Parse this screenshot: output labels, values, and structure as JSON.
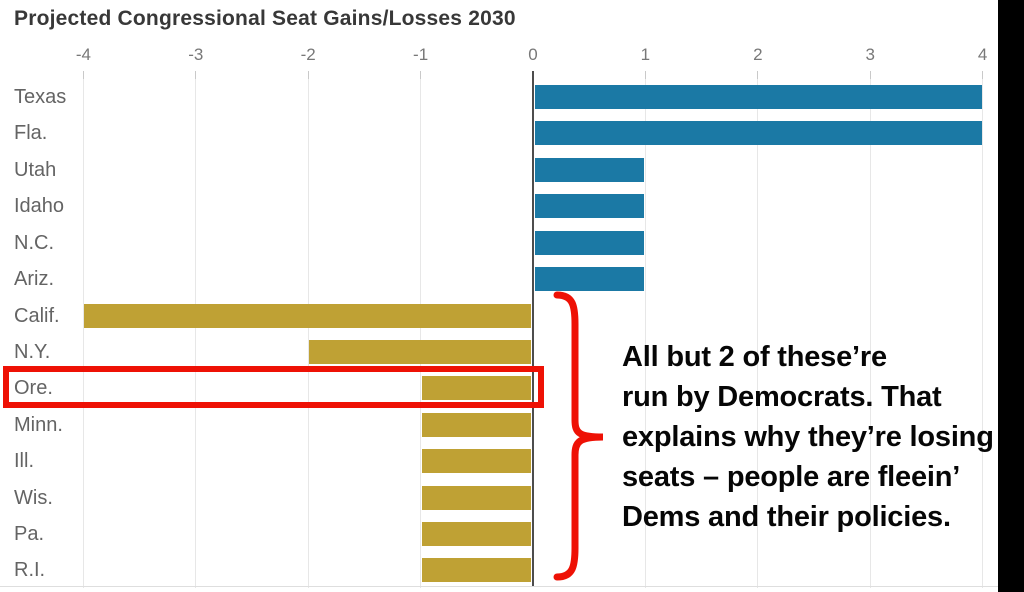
{
  "title": "Projected Congressional Seat Gains/Losses 2030",
  "chart_data": {
    "type": "bar",
    "orientation": "horizontal",
    "title": "Projected Congressional Seat Gains/Losses 2030",
    "categories": [
      "Texas",
      "Fla.",
      "Utah",
      "Idaho",
      "N.C.",
      "Ariz.",
      "Calif.",
      "N.Y.",
      "Ore.",
      "Minn.",
      "Ill.",
      "Wis.",
      "Pa.",
      "R.I."
    ],
    "values": [
      4,
      4,
      1,
      1,
      1,
      1,
      -4,
      -2,
      -1,
      -1,
      -1,
      -1,
      -1,
      -1
    ],
    "xlabel": "",
    "ylabel": "",
    "xlim": [
      -4,
      4
    ],
    "x_ticks": [
      "-4",
      "-3",
      "-2",
      "-1",
      "0",
      "1",
      "2",
      "3",
      "4"
    ],
    "x_tick_values": [
      -4,
      -3,
      -2,
      -1,
      0,
      1,
      2,
      3,
      4
    ],
    "grid": true,
    "legend": "none",
    "colors": {
      "gain": "#1b79a5",
      "loss": "#bfa134"
    }
  },
  "annotation": {
    "text": "All but 2 of these’re\nrun by Democrats. That\nexplains why they’re losing\nseats – people are fleein’\nDems and their policies.",
    "text_color": "#060606",
    "marker_color": "#ee1105",
    "highlighted_state": "Ore."
  }
}
